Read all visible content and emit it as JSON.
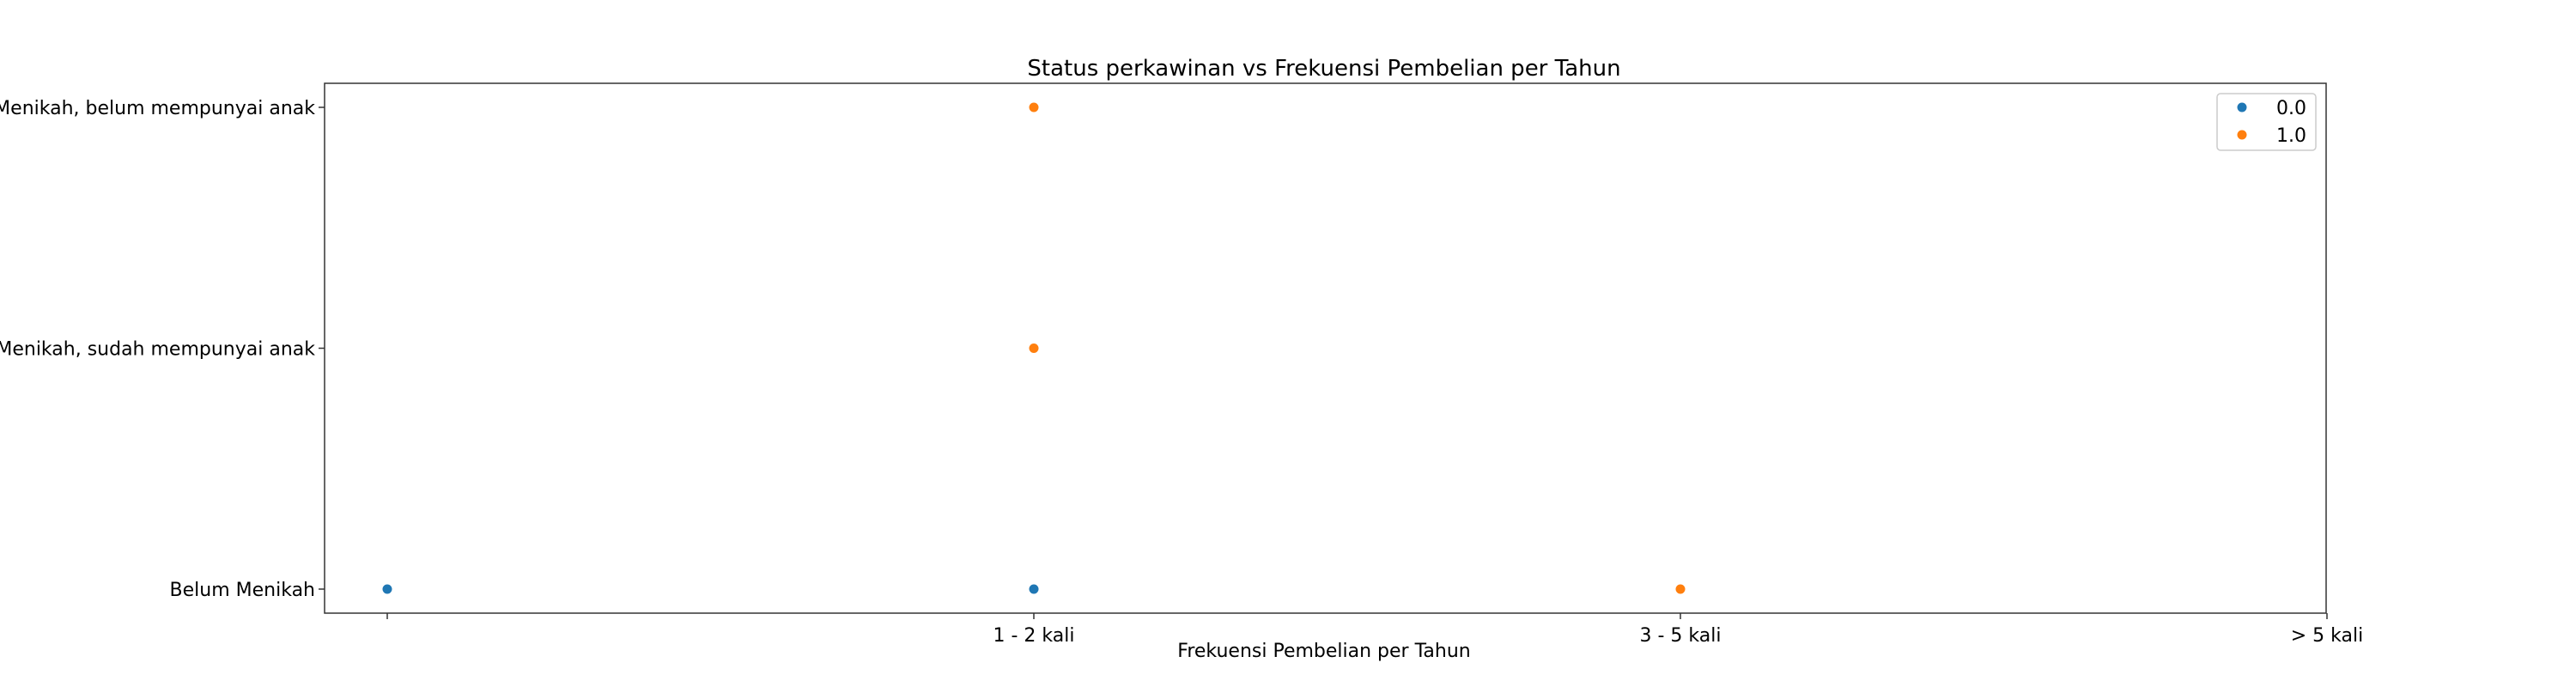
{
  "chart_data": {
    "type": "scatter",
    "title": "Status perkawinan vs Frekuensi Pembelian per Tahun",
    "xlabel": "Frekuensi Pembelian per Tahun",
    "ylabel": "",
    "x_categories": [
      "",
      "1 - 2 kali",
      "3 - 5 kali",
      "> 5 kali"
    ],
    "y_categories": [
      "Belum Menikah",
      "Menikah, sudah mempunyai anak",
      "Menikah, belum mempunyai anak"
    ],
    "grid": false,
    "legend_position": "top-right",
    "series": [
      {
        "name": "0.0",
        "color": "#1f77b4",
        "points": [
          {
            "x": "",
            "y": "Belum Menikah"
          },
          {
            "x": "1 - 2 kali",
            "y": "Belum Menikah"
          }
        ]
      },
      {
        "name": "1.0",
        "color": "#ff7f0e",
        "points": [
          {
            "x": "1 - 2 kali",
            "y": "Menikah, belum mempunyai anak"
          },
          {
            "x": "1 - 2 kali",
            "y": "Menikah, sudah mempunyai anak"
          },
          {
            "x": "3 - 5 kali",
            "y": "Belum Menikah"
          }
        ]
      }
    ]
  }
}
